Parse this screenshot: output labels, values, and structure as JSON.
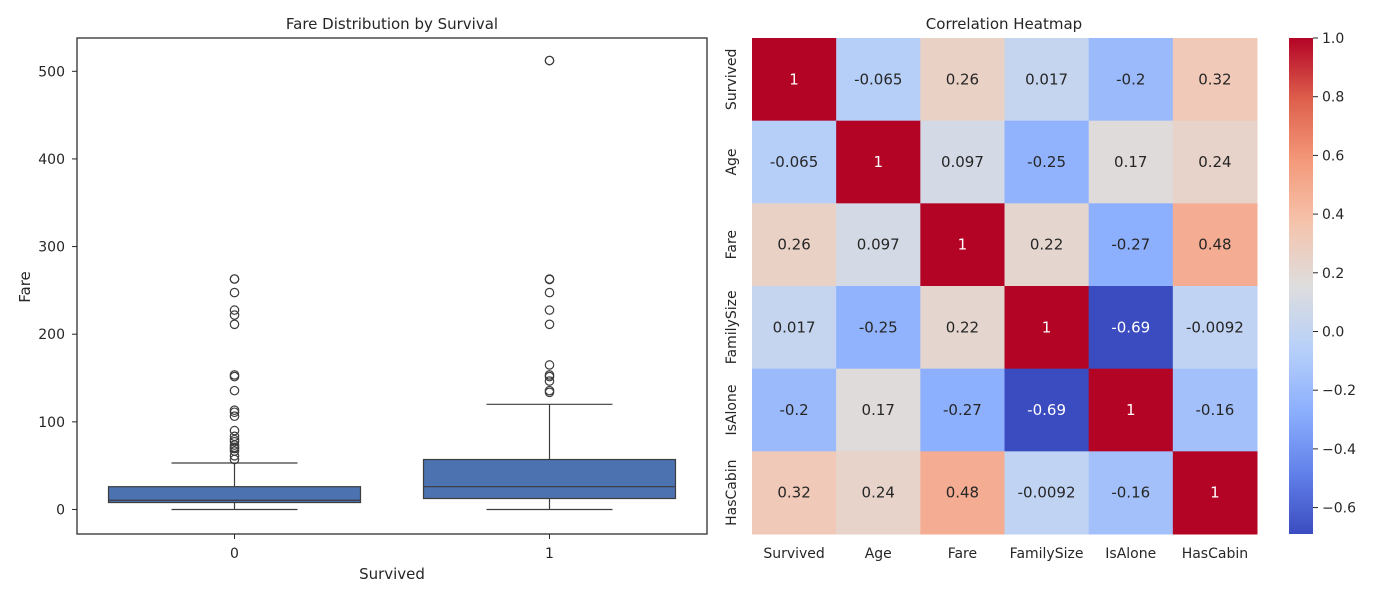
{
  "figure": {
    "background": "#ffffff"
  },
  "chart_data": [
    {
      "type": "box",
      "title": "Fare Distribution by Survival",
      "xlabel": "Survived",
      "ylabel": "Fare",
      "categories": [
        "0",
        "1"
      ],
      "ylim": [
        -28,
        538
      ],
      "yticks": [
        0,
        100,
        200,
        300,
        400,
        500
      ],
      "color": "#4c72b0",
      "grid": false,
      "boxes": [
        {
          "category": "0",
          "min": 0,
          "q1": 7.9,
          "median": 10.5,
          "q3": 26,
          "whisker_high": 53,
          "outliers": [
            263,
            263,
            247.5,
            227.5,
            221.8,
            211.3,
            153.5,
            151.6,
            135.6,
            113.3,
            110.9,
            106.4,
            90,
            83.5,
            79.7,
            77.3,
            73.5,
            71,
            69.5,
            66.6,
            61.2,
            57
          ]
        },
        {
          "category": "1",
          "min": 0,
          "q1": 12.5,
          "median": 26,
          "q3": 57,
          "whisker_high": 120,
          "outliers": [
            512.3,
            512.3,
            263,
            262.4,
            247.5,
            227.5,
            211.3,
            164.9,
            153.5,
            151.6,
            146.5,
            135.6,
            133.7
          ]
        }
      ]
    },
    {
      "type": "heatmap",
      "title": "Correlation Heatmap",
      "labels": [
        "Survived",
        "Age",
        "Fare",
        "FamilySize",
        "IsAlone",
        "HasCabin"
      ],
      "values": [
        [
          1,
          -0.065,
          0.26,
          0.017,
          -0.2,
          0.32
        ],
        [
          -0.065,
          1,
          0.097,
          -0.25,
          0.17,
          0.24
        ],
        [
          0.26,
          0.097,
          1,
          0.22,
          -0.27,
          0.48
        ],
        [
          0.017,
          -0.25,
          0.22,
          1,
          -0.69,
          -0.0092
        ],
        [
          -0.2,
          0.17,
          -0.27,
          -0.69,
          1,
          -0.16
        ],
        [
          0.32,
          0.24,
          0.48,
          -0.0092,
          -0.16,
          1
        ]
      ],
      "annotations": [
        [
          "1",
          "-0.065",
          "0.26",
          "0.017",
          "-0.2",
          "0.32"
        ],
        [
          "-0.065",
          "1",
          "0.097",
          "-0.25",
          "0.17",
          "0.24"
        ],
        [
          "0.26",
          "0.097",
          "1",
          "0.22",
          "-0.27",
          "0.48"
        ],
        [
          "0.017",
          "-0.25",
          "0.22",
          "1",
          "-0.69",
          "-0.0092"
        ],
        [
          "-0.2",
          "0.17",
          "-0.27",
          "-0.69",
          "1",
          "-0.16"
        ],
        [
          "0.32",
          "0.24",
          "0.48",
          "-0.0092",
          "-0.16",
          "1"
        ]
      ],
      "colormap": "coolwarm",
      "vmin": -0.69,
      "vmax": 1.0,
      "colorbar_ticks": [
        "1.0",
        "0.8",
        "0.6",
        "0.4",
        "0.2",
        "0.0",
        "−0.2",
        "−0.4",
        "−0.6"
      ]
    }
  ]
}
